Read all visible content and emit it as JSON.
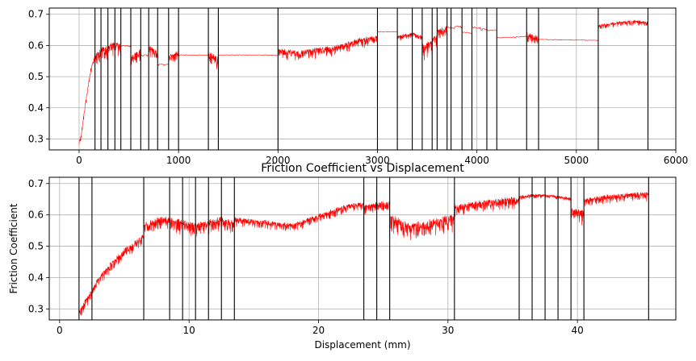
{
  "chart_data": [
    {
      "type": "line",
      "title": "",
      "xlabel": "",
      "ylabel": "",
      "xlim": [
        -300,
        6000
      ],
      "ylim": [
        0.265,
        0.72
      ],
      "xticks": [
        0,
        1000,
        2000,
        3000,
        4000,
        5000,
        6000
      ],
      "xtick_labels": [
        "0",
        "1000",
        "2000",
        "3000",
        "4000",
        "5000",
        "6000"
      ],
      "yticks": [
        0.3,
        0.4,
        0.5,
        0.6,
        0.7
      ],
      "ytick_labels": [
        "0.3",
        "0.4",
        "0.5",
        "0.6",
        "0.7"
      ],
      "grid": true,
      "line_color": "#ff0000",
      "vlines_color": "#000000",
      "vlines": [
        160,
        220,
        290,
        360,
        420,
        520,
        620,
        700,
        790,
        900,
        1000,
        1300,
        1400,
        2000,
        3000,
        3200,
        3350,
        3450,
        3550,
        3600,
        3700,
        3740,
        3850,
        3950,
        4100,
        4200,
        4500,
        4620,
        5220,
        5720
      ],
      "series": [
        {
          "segments": [
            {
              "x": [
                0,
                20,
                40,
                60,
                80,
                100,
                120,
                140,
                160
              ],
              "y": [
                0.29,
                0.31,
                0.36,
                0.41,
                0.45,
                0.49,
                0.53,
                0.55,
                0.57
              ],
              "noise": 0.015
            },
            {
              "x": [
                160,
                220,
                290,
                360,
                420
              ],
              "y": [
                0.57,
                0.59,
                0.6,
                0.61,
                0.6
              ],
              "noise": 0.04
            },
            {
              "x": [
                420,
                520
              ],
              "y": [
                0.6,
                0.6
              ],
              "noise": 0.005
            },
            {
              "x": [
                520,
                620
              ],
              "y": [
                0.56,
                0.59
              ],
              "noise": 0.035
            },
            {
              "x": [
                620,
                700
              ],
              "y": [
                0.57,
                0.57
              ],
              "noise": 0.005
            },
            {
              "x": [
                700,
                790
              ],
              "y": [
                0.6,
                0.58
              ],
              "noise": 0.03
            },
            {
              "x": [
                790,
                900
              ],
              "y": [
                0.54,
                0.54
              ],
              "noise": 0.004
            },
            {
              "x": [
                900,
                1000
              ],
              "y": [
                0.57,
                0.58
              ],
              "noise": 0.03
            },
            {
              "x": [
                1000,
                1300
              ],
              "y": [
                0.57,
                0.57
              ],
              "noise": 0.003
            },
            {
              "x": [
                1300,
                1400
              ],
              "y": [
                0.58,
                0.56
              ],
              "noise": 0.04
            },
            {
              "x": [
                1400,
                2000
              ],
              "y": [
                0.57,
                0.57
              ],
              "noise": 0.003
            },
            {
              "x": [
                2000,
                2200,
                2400,
                2600,
                2800,
                3000
              ],
              "y": [
                0.59,
                0.58,
                0.59,
                0.6,
                0.62,
                0.63
              ],
              "noise": 0.03
            },
            {
              "x": [
                3000,
                3200
              ],
              "y": [
                0.645,
                0.645
              ],
              "noise": 0.003
            },
            {
              "x": [
                3200,
                3350
              ],
              "y": [
                0.63,
                0.64
              ],
              "noise": 0.015
            },
            {
              "x": [
                3350,
                3450
              ],
              "y": [
                0.64,
                0.63
              ],
              "noise": 0.02
            },
            {
              "x": [
                3450,
                3550,
                3600
              ],
              "y": [
                0.6,
                0.62,
                0.64
              ],
              "noise": 0.05
            },
            {
              "x": [
                3600,
                3700
              ],
              "y": [
                0.65,
                0.66
              ],
              "noise": 0.03
            },
            {
              "x": [
                3700,
                3740
              ],
              "y": [
                0.66,
                0.66
              ],
              "noise": 0.005
            },
            {
              "x": [
                3740,
                3850
              ],
              "y": [
                0.66,
                0.665
              ],
              "noise": 0.01
            },
            {
              "x": [
                3850,
                3950
              ],
              "y": [
                0.645,
                0.64
              ],
              "noise": 0.004
            },
            {
              "x": [
                3950,
                4100
              ],
              "y": [
                0.66,
                0.655
              ],
              "noise": 0.01
            },
            {
              "x": [
                4100,
                4200
              ],
              "y": [
                0.65,
                0.65
              ],
              "noise": 0.004
            },
            {
              "x": [
                4200,
                4500
              ],
              "y": [
                0.625,
                0.63
              ],
              "noise": 0.004
            },
            {
              "x": [
                4500,
                4620
              ],
              "y": [
                0.64,
                0.63
              ],
              "noise": 0.03
            },
            {
              "x": [
                4620,
                5220
              ],
              "y": [
                0.62,
                0.617
              ],
              "noise": 0.002
            },
            {
              "x": [
                5220,
                5400,
                5600,
                5720
              ],
              "y": [
                0.665,
                0.675,
                0.68,
                0.675
              ],
              "noise": 0.015
            }
          ]
        }
      ]
    },
    {
      "type": "line",
      "title": "Friction Coefficient vs Displacement",
      "xlabel": "Displacement (mm)",
      "ylabel": "Friction Coefficient",
      "xlim": [
        -0.8,
        47.6
      ],
      "ylim": [
        0.265,
        0.72
      ],
      "xticks": [
        0,
        10,
        20,
        30,
        40
      ],
      "xtick_labels": [
        "0",
        "10",
        "20",
        "30",
        "40"
      ],
      "yticks": [
        0.3,
        0.4,
        0.5,
        0.6,
        0.7
      ],
      "ytick_labels": [
        "0.3",
        "0.4",
        "0.5",
        "0.6",
        "0.7"
      ],
      "grid": true,
      "line_color": "#ff0000",
      "vlines_color": "#000000",
      "vlines": [
        1.5,
        2.5,
        6.5,
        8.5,
        9.5,
        10.5,
        11.5,
        12.5,
        13.5,
        23.5,
        24.5,
        25.5,
        30.5,
        35.5,
        36.5,
        37.5,
        38.5,
        39.5,
        40.5,
        45.5
      ],
      "series": [
        {
          "segments": [
            {
              "x": [
                1.5,
                2,
                2.5,
                3,
                4,
                5,
                6,
                6.5
              ],
              "y": [
                0.29,
                0.33,
                0.36,
                0.4,
                0.45,
                0.49,
                0.52,
                0.54
              ],
              "noise": 0.03
            },
            {
              "x": [
                6.5,
                7.5,
                8.5,
                9.5,
                10.5,
                11.5,
                12.5,
                13.5
              ],
              "y": [
                0.57,
                0.59,
                0.59,
                0.58,
                0.57,
                0.58,
                0.59,
                0.58
              ],
              "noise": 0.04
            },
            {
              "x": [
                13.5,
                16,
                18,
                20,
                22,
                23.5
              ],
              "y": [
                0.59,
                0.58,
                0.57,
                0.6,
                0.63,
                0.64
              ],
              "noise": 0.025
            },
            {
              "x": [
                23.5,
                24.5,
                25.5
              ],
              "y": [
                0.63,
                0.64,
                0.64
              ],
              "noise": 0.03
            },
            {
              "x": [
                25.5,
                27,
                28.5,
                30.5
              ],
              "y": [
                0.6,
                0.57,
                0.58,
                0.6
              ],
              "noise": 0.05
            },
            {
              "x": [
                30.5,
                32,
                34,
                35.5
              ],
              "y": [
                0.63,
                0.64,
                0.65,
                0.655
              ],
              "noise": 0.035
            },
            {
              "x": [
                35.5,
                36.5,
                37.5,
                38.5,
                39.5
              ],
              "y": [
                0.66,
                0.665,
                0.665,
                0.66,
                0.655
              ],
              "noise": 0.012
            },
            {
              "x": [
                39.5,
                40.5
              ],
              "y": [
                0.62,
                0.61
              ],
              "noise": 0.04
            },
            {
              "x": [
                40.5,
                42,
                44,
                45.5
              ],
              "y": [
                0.65,
                0.66,
                0.67,
                0.67
              ],
              "noise": 0.025
            }
          ]
        }
      ]
    }
  ]
}
